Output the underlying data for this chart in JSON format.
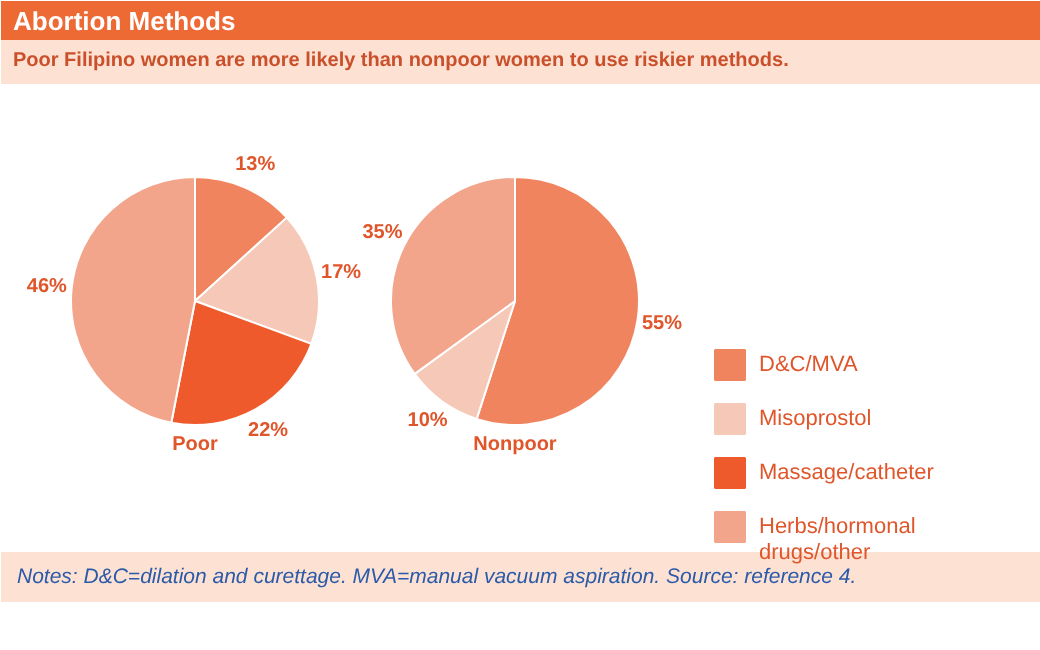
{
  "chart_data": {
    "type": "pie",
    "title": "Abortion Methods",
    "subtitle": "Poor Filipino women are more likely than nonpoor women to use riskier methods.",
    "annotations": [
      "Notes: D&C=dilation and curettage. MVA=manual vacuum aspiration. Source: reference 4."
    ],
    "categories": [
      "D&C/MVA",
      "Misoprostol",
      "Massage/catheter",
      "Herbs/hormonal drugs/other"
    ],
    "colors": [
      "#f0845e",
      "#f5c8b8",
      "#ee5a2c",
      "#f2a58a"
    ],
    "legend": "right",
    "series": [
      {
        "name": "Poor",
        "values": [
          13,
          17,
          22,
          46
        ],
        "value_labels": [
          "13%",
          "17%",
          "22%",
          "46%"
        ]
      },
      {
        "name": "Nonpoor",
        "values": [
          55,
          10,
          null,
          35
        ],
        "value_labels": [
          "55%",
          "10%",
          null,
          "35%"
        ]
      }
    ]
  }
}
